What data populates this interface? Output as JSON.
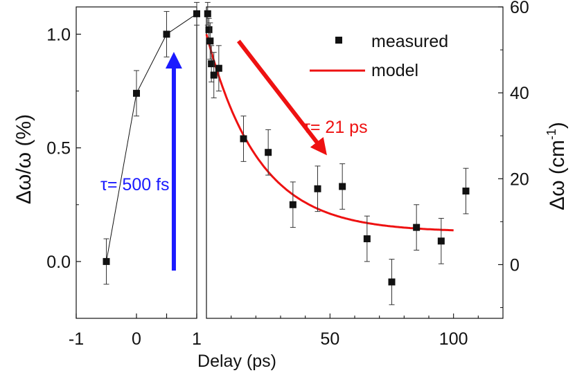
{
  "chart_data": {
    "type": "scatter",
    "xlabel": "Delay (ps)",
    "ylabel_left": "Δω/ω (%)",
    "ylabel_right_main": "Δω (cm",
    "ylabel_right_sup": "-1",
    "ylabel_right_close": ")",
    "panels": [
      {
        "name": "short-delay",
        "xlim": [
          -1,
          1
        ],
        "ylim": [
          -0.25,
          1.12
        ],
        "x_ticks": [
          {
            "value": -1,
            "label": "-1"
          },
          {
            "value": 0,
            "label": "0"
          },
          {
            "value": 0.5,
            "label": ""
          },
          {
            "value": 1,
            "label": "1"
          }
        ],
        "y_ticks": [
          {
            "value": 0.0,
            "label": "0.0"
          },
          {
            "value": 0.5,
            "label": "0.5"
          },
          {
            "value": 1.0,
            "label": "1.0"
          }
        ],
        "series": [
          {
            "name": "measured",
            "connect_line": true,
            "points": [
              {
                "x": -0.5,
                "y": 0.0,
                "err": 0.1
              },
              {
                "x": 0.0,
                "y": 0.74,
                "err": 0.1
              },
              {
                "x": 0.5,
                "y": 1.0,
                "err": 0.1
              },
              {
                "x": 1.0,
                "y": 1.09,
                "err": 0.05
              }
            ]
          }
        ],
        "annotation": {
          "text": "τ= 500 fs",
          "color": "#1a1aff",
          "arrow_from": {
            "x": 0.62,
            "y": -0.04
          },
          "arrow_to": {
            "x": 0.62,
            "y": 0.95
          }
        }
      },
      {
        "name": "long-delay",
        "xlim": [
          0,
          120
        ],
        "ylim": [
          -0.25,
          1.12
        ],
        "x_ticks": [
          {
            "value": 50,
            "label": "50"
          },
          {
            "value": 100,
            "label": "100"
          }
        ],
        "right_axis": {
          "unit": "cm-1",
          "ylim": [
            -12.5,
            60
          ],
          "ticks": [
            {
              "value": 0,
              "label": "0"
            },
            {
              "value": 20,
              "label": "20"
            },
            {
              "value": 40,
              "label": "40"
            },
            {
              "value": 60,
              "label": "60"
            }
          ]
        },
        "series": [
          {
            "name": "measured",
            "connect_line": false,
            "points": [
              {
                "x": 0.5,
                "y": 1.09,
                "err": 0.05
              },
              {
                "x": 1.0,
                "y": 1.02,
                "err": 0.05
              },
              {
                "x": 1.5,
                "y": 0.97,
                "err": 0.08
              },
              {
                "x": 2.0,
                "y": 0.87,
                "err": 0.08
              },
              {
                "x": 3.0,
                "y": 0.82,
                "err": 0.1
              },
              {
                "x": 5.0,
                "y": 0.85,
                "err": 0.1
              },
              {
                "x": 15.0,
                "y": 0.54,
                "err": 0.1
              },
              {
                "x": 25.0,
                "y": 0.48,
                "err": 0.1
              },
              {
                "x": 35.0,
                "y": 0.25,
                "err": 0.1
              },
              {
                "x": 45.0,
                "y": 0.32,
                "err": 0.1
              },
              {
                "x": 55.0,
                "y": 0.33,
                "err": 0.1
              },
              {
                "x": 65.0,
                "y": 0.1,
                "err": 0.1
              },
              {
                "x": 75.0,
                "y": -0.09,
                "err": 0.1
              },
              {
                "x": 85.0,
                "y": 0.15,
                "err": 0.1
              },
              {
                "x": 95.0,
                "y": 0.09,
                "err": 0.1
              },
              {
                "x": 105.0,
                "y": 0.31,
                "err": 0.1
              }
            ]
          },
          {
            "name": "model",
            "color": "#ee1111",
            "function": "exp_decay",
            "amplitude": 0.87,
            "offset": 0.13,
            "tau_ps": 21,
            "x_range": [
              0,
              100
            ]
          }
        ],
        "annotation": {
          "text": "τ= 21 ps",
          "color": "#ee1111",
          "arrow_from": {
            "x": 13,
            "y": 0.97
          },
          "arrow_to": {
            "x": 50,
            "y": 0.45
          }
        }
      }
    ],
    "legend": {
      "position": "top-right",
      "entries": [
        {
          "label": "measured",
          "marker": "square",
          "color": "#111111"
        },
        {
          "label": "model",
          "marker": "line",
          "color": "#ee1111"
        }
      ]
    }
  }
}
